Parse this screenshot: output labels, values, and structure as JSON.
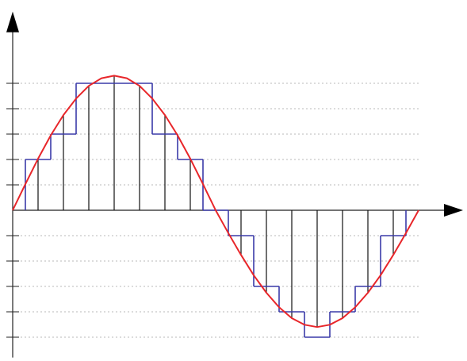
{
  "chart_data": {
    "type": "line",
    "xlim": [
      0,
      17.75
    ],
    "ylim": [
      -5.8,
      7.7
    ],
    "yticks": [
      -5,
      -4,
      -3,
      -2,
      -1,
      1,
      2,
      3,
      4,
      5
    ],
    "grid": true,
    "curve": {
      "color": "#e8262a",
      "x": [
        0,
        0.5,
        1,
        1.5,
        2,
        2.5,
        3,
        3.5,
        4,
        4.5,
        5,
        5.5,
        6,
        6.5,
        7,
        7.5,
        8,
        8.5,
        9,
        9.5,
        10,
        10.5,
        11,
        11.5,
        12,
        12.5,
        13,
        13.5,
        14,
        14.5,
        15,
        15.5,
        16
      ],
      "values": [
        0,
        1.03,
        2.03,
        2.95,
        3.75,
        4.4,
        4.9,
        5.2,
        5.3,
        5.2,
        4.9,
        4.4,
        3.75,
        2.95,
        2.03,
        1.03,
        0,
        -0.9,
        -1.76,
        -2.56,
        -3.25,
        -3.82,
        -4.25,
        -4.51,
        -4.6,
        -4.51,
        -4.25,
        -3.82,
        -3.25,
        -2.56,
        -1.76,
        -0.9,
        0
      ]
    },
    "samples": {
      "color": "#111111",
      "x": [
        1,
        2,
        3,
        4,
        5,
        6,
        7,
        8,
        9,
        10,
        11,
        12,
        13,
        14,
        15
      ],
      "values": [
        2.03,
        3.75,
        4.9,
        5.3,
        4.9,
        3.75,
        2.03,
        0,
        -1.76,
        -3.25,
        -4.25,
        -4.6,
        -4.25,
        -3.25,
        -1.76
      ]
    },
    "quantized": {
      "color": "#3a3aa8",
      "values": [
        2,
        3,
        5,
        5,
        5,
        3,
        2,
        0,
        -1,
        -3,
        -4,
        -5,
        -4,
        -3,
        -1
      ]
    }
  }
}
